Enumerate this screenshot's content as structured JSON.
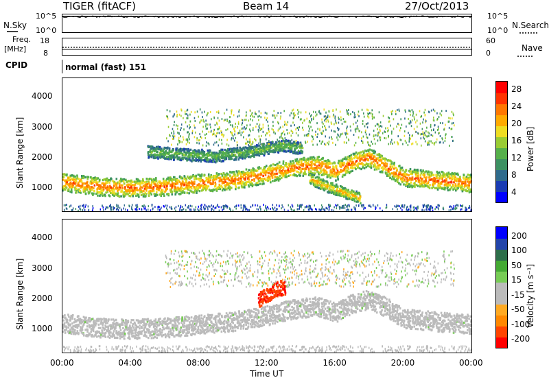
{
  "header": {
    "station": "TIGER (fitACF)",
    "beam": "Beam 14",
    "date": "27/Oct/2013"
  },
  "top_panels": {
    "nsky_label": "N.Sky",
    "nsky_ticks": [
      "10^5",
      "10^0"
    ],
    "nsearch_label": "N.Search",
    "nsearch_ticks": [
      "10^5",
      "10^0"
    ],
    "freq_label_line1": "Freq.",
    "freq_label_line2": "[MHz]",
    "freq_ticks": [
      "18",
      "8"
    ],
    "nave_label": "Nave",
    "nave_ticks": [
      "60",
      "0"
    ],
    "cpid_label": "CPID",
    "cpid_value": "normal (fast) 151"
  },
  "colors": {
    "power_scale": [
      "#0000ff",
      "#1a3cb4",
      "#2f6b8c",
      "#3c9162",
      "#55b04a",
      "#99cc33",
      "#eedd22",
      "#ffaa00",
      "#ff7700",
      "#ff3300",
      "#ff0000"
    ],
    "velocity_scale": [
      "#ff0000",
      "#ff4400",
      "#ff8800",
      "#ffaa22",
      "#bbbbbb",
      "#bbbbbb",
      "#77cc55",
      "#44aa33",
      "#2d6e4a",
      "#2244aa",
      "#0000ff"
    ]
  },
  "chart_data": [
    {
      "type": "heatmap",
      "name_panel": "power",
      "ylabel": "Slant Range [km]",
      "xlabel": "Time UT",
      "yticks": [
        "1000",
        "2000",
        "3000",
        "4000"
      ],
      "xticks": [
        "00:00",
        "04:00",
        "08:00",
        "12:00",
        "16:00",
        "20:00",
        "00:00"
      ],
      "ylim": [
        200,
        4600
      ],
      "colorbar": {
        "label": "Power [dB]",
        "ticks": [
          "4",
          "8",
          "12",
          "16",
          "20",
          "24",
          "28"
        ],
        "range": [
          0,
          32
        ]
      },
      "bands": [
        {
          "hours": [
            0,
            2,
            4,
            6,
            8,
            10,
            12,
            13,
            14,
            15,
            16,
            17,
            18,
            19,
            20,
            22,
            24
          ],
          "range_km": [
            1200,
            1050,
            1000,
            1050,
            1150,
            1250,
            1450,
            1600,
            1700,
            1750,
            1550,
            1850,
            2000,
            1700,
            1350,
            1250,
            1150
          ],
          "width_km": 300,
          "power_db": 26
        },
        {
          "hours": [
            5,
            7,
            9,
            11,
            13,
            14
          ],
          "range_km": [
            2200,
            2100,
            2050,
            2200,
            2400,
            2300
          ],
          "width_km": 200,
          "power_db": 14
        },
        {
          "hours": [
            14.5,
            15.5,
            16.5,
            17.5
          ],
          "range_km": [
            1300,
            1050,
            850,
            650
          ],
          "width_km": 180,
          "power_db": 22
        }
      ]
    },
    {
      "type": "heatmap",
      "name_panel": "velocity",
      "ylabel": "Slant Range [km]",
      "xlabel": "Time UT",
      "yticks": [
        "1000",
        "2000",
        "3000",
        "4000"
      ],
      "xticks": [
        "00:00",
        "04:00",
        "08:00",
        "12:00",
        "16:00",
        "20:00",
        "00:00"
      ],
      "ylim": [
        200,
        4600
      ],
      "colorbar": {
        "label": "Velocity [m s⁻¹]",
        "ticks": [
          "200",
          "100",
          "50",
          "15",
          "-15",
          "-50",
          "-100",
          "-200"
        ],
        "range": [
          -250,
          250
        ]
      },
      "bands": [
        {
          "hours": [
            0,
            2,
            4,
            6,
            8,
            10,
            12,
            13,
            14,
            15,
            16,
            17,
            18,
            19,
            20,
            22,
            24
          ],
          "range_km": [
            1200,
            1050,
            1000,
            1050,
            1150,
            1250,
            1450,
            1600,
            1700,
            1750,
            1550,
            1850,
            2000,
            1700,
            1350,
            1250,
            1150
          ],
          "width_km": 320,
          "velocity": 0
        },
        {
          "hours": [
            11.5,
            12,
            12.5,
            13
          ],
          "range_km": [
            2000,
            2150,
            2300,
            2400
          ],
          "width_km": 250,
          "velocity": -200
        }
      ]
    }
  ]
}
